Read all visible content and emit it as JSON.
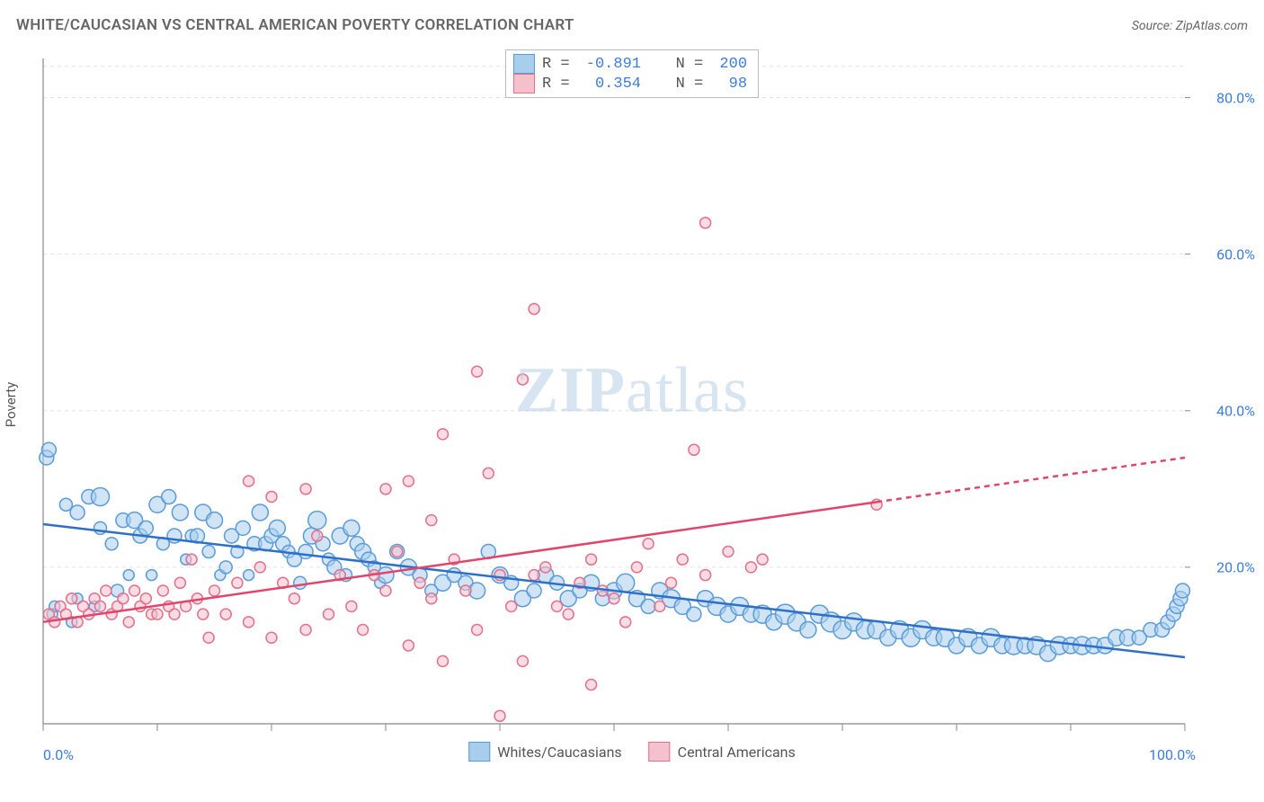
{
  "title": "WHITE/CAUCASIAN VS CENTRAL AMERICAN POVERTY CORRELATION CHART",
  "source": "Source: ZipAtlas.com",
  "watermark_prefix": "ZIP",
  "watermark_suffix": "atlas",
  "chart": {
    "type": "scatter",
    "ylabel": "Poverty",
    "xlim": [
      0,
      100
    ],
    "ylim": [
      0,
      85
    ],
    "xtick_major": [
      0,
      100
    ],
    "xtick_labels": [
      "0.0%",
      "100.0%"
    ],
    "xtick_minor_step": 10,
    "ytick_major": [
      20,
      40,
      60,
      80
    ],
    "ytick_labels": [
      "20.0%",
      "40.0%",
      "60.0%",
      "80.0%"
    ],
    "background_color": "#ffffff",
    "grid_color": "#e3e3e3",
    "grid_dash": "4,4",
    "axis_color": "#888888",
    "tick_color": "#888888",
    "marker_radius_min": 5,
    "marker_radius_max": 11,
    "marker_stroke_width": 1.5,
    "trend_line_width": 2.5,
    "series": [
      {
        "name": "Whites/Caucasians",
        "fill": "#a9cdec",
        "stroke": "#5a9bd8",
        "fill_opacity": 0.55,
        "R": "-0.891",
        "N": "200",
        "trend": {
          "x1": 0,
          "y1": 25.5,
          "x2": 100,
          "y2": 8.5,
          "color": "#2d6fc9",
          "dash_from_x": null
        },
        "points": [
          [
            0.3,
            34,
            8
          ],
          [
            0.5,
            35,
            8
          ],
          [
            0.8,
            14,
            6
          ],
          [
            1,
            15,
            6
          ],
          [
            2,
            28,
            7
          ],
          [
            2.5,
            13,
            6
          ],
          [
            3,
            16,
            6
          ],
          [
            3,
            27,
            8
          ],
          [
            4,
            29,
            8
          ],
          [
            4.5,
            15,
            6
          ],
          [
            5,
            25,
            7
          ],
          [
            5,
            29,
            10
          ],
          [
            6,
            23,
            7
          ],
          [
            6.5,
            17,
            7
          ],
          [
            7,
            26,
            8
          ],
          [
            7.5,
            19,
            6
          ],
          [
            8,
            26,
            9
          ],
          [
            8.5,
            24,
            8
          ],
          [
            9,
            25,
            8
          ],
          [
            9.5,
            19,
            6
          ],
          [
            10,
            28,
            9
          ],
          [
            10.5,
            23,
            7
          ],
          [
            11,
            29,
            8
          ],
          [
            11.5,
            24,
            8
          ],
          [
            12,
            27,
            9
          ],
          [
            12.5,
            21,
            6
          ],
          [
            13,
            24,
            7
          ],
          [
            13.5,
            24,
            8
          ],
          [
            14,
            27,
            9
          ],
          [
            14.5,
            22,
            7
          ],
          [
            15,
            26,
            9
          ],
          [
            15.5,
            19,
            6
          ],
          [
            16,
            20,
            7
          ],
          [
            16.5,
            24,
            8
          ],
          [
            17,
            22,
            7
          ],
          [
            17.5,
            25,
            8
          ],
          [
            18,
            19,
            6
          ],
          [
            18.5,
            23,
            8
          ],
          [
            19,
            27,
            9
          ],
          [
            19.5,
            23,
            8
          ],
          [
            20,
            24,
            8
          ],
          [
            20.5,
            25,
            9
          ],
          [
            21,
            23,
            8
          ],
          [
            21.5,
            22,
            7
          ],
          [
            22,
            21,
            8
          ],
          [
            22.5,
            18,
            7
          ],
          [
            23,
            22,
            8
          ],
          [
            23.5,
            24,
            9
          ],
          [
            24,
            26,
            10
          ],
          [
            24.5,
            23,
            8
          ],
          [
            25,
            21,
            7
          ],
          [
            25.5,
            20,
            8
          ],
          [
            26,
            24,
            9
          ],
          [
            26.5,
            19,
            7
          ],
          [
            27,
            25,
            9
          ],
          [
            27.5,
            23,
            8
          ],
          [
            28,
            22,
            9
          ],
          [
            28.5,
            21,
            8
          ],
          [
            29,
            20,
            7
          ],
          [
            29.5,
            18,
            6
          ],
          [
            30,
            19,
            9
          ],
          [
            31,
            22,
            8
          ],
          [
            32,
            20,
            9
          ],
          [
            33,
            19,
            8
          ],
          [
            34,
            17,
            7
          ],
          [
            35,
            18,
            9
          ],
          [
            36,
            19,
            8
          ],
          [
            37,
            18,
            8
          ],
          [
            38,
            17,
            9
          ],
          [
            39,
            22,
            8
          ],
          [
            40,
            19,
            9
          ],
          [
            41,
            18,
            8
          ],
          [
            42,
            16,
            9
          ],
          [
            43,
            17,
            8
          ],
          [
            44,
            19,
            9
          ],
          [
            45,
            18,
            8
          ],
          [
            46,
            16,
            9
          ],
          [
            47,
            17,
            8
          ],
          [
            48,
            18,
            9
          ],
          [
            49,
            16,
            8
          ],
          [
            50,
            17,
            9
          ],
          [
            51,
            18,
            10
          ],
          [
            52,
            16,
            9
          ],
          [
            53,
            15,
            8
          ],
          [
            54,
            17,
            9
          ],
          [
            55,
            16,
            10
          ],
          [
            56,
            15,
            9
          ],
          [
            57,
            14,
            8
          ],
          [
            58,
            16,
            9
          ],
          [
            59,
            15,
            10
          ],
          [
            60,
            14,
            9
          ],
          [
            61,
            15,
            10
          ],
          [
            62,
            14,
            9
          ],
          [
            63,
            14,
            10
          ],
          [
            64,
            13,
            9
          ],
          [
            65,
            14,
            11
          ],
          [
            66,
            13,
            10
          ],
          [
            67,
            12,
            9
          ],
          [
            68,
            14,
            10
          ],
          [
            69,
            13,
            11
          ],
          [
            70,
            12,
            10
          ],
          [
            71,
            13,
            10
          ],
          [
            72,
            12,
            10
          ],
          [
            73,
            12,
            10
          ],
          [
            74,
            11,
            9
          ],
          [
            75,
            12,
            10
          ],
          [
            76,
            11,
            10
          ],
          [
            77,
            12,
            10
          ],
          [
            78,
            11,
            9
          ],
          [
            79,
            11,
            10
          ],
          [
            80,
            10,
            9
          ],
          [
            81,
            11,
            10
          ],
          [
            82,
            10,
            9
          ],
          [
            83,
            11,
            10
          ],
          [
            84,
            10,
            9
          ],
          [
            85,
            10,
            10
          ],
          [
            86,
            10,
            9
          ],
          [
            87,
            10,
            10
          ],
          [
            88,
            9,
            9
          ],
          [
            89,
            10,
            10
          ],
          [
            90,
            10,
            9
          ],
          [
            91,
            10,
            10
          ],
          [
            92,
            10,
            9
          ],
          [
            93,
            10,
            9
          ],
          [
            94,
            11,
            9
          ],
          [
            95,
            11,
            9
          ],
          [
            96,
            11,
            8
          ],
          [
            97,
            12,
            8
          ],
          [
            98,
            12,
            8
          ],
          [
            98.5,
            13,
            8
          ],
          [
            99,
            14,
            8
          ],
          [
            99.3,
            15,
            8
          ],
          [
            99.6,
            16,
            8
          ],
          [
            99.8,
            17,
            8
          ]
        ]
      },
      {
        "name": "Central Americans",
        "fill": "#f5c1cd",
        "stroke": "#e3708c",
        "fill_opacity": 0.55,
        "R": "0.354",
        "N": "98",
        "trend": {
          "x1": 0,
          "y1": 13,
          "x2": 100,
          "y2": 34,
          "color": "#e1456b",
          "dash_from_x": 73
        },
        "points": [
          [
            0.5,
            14,
            6
          ],
          [
            1,
            13,
            6
          ],
          [
            1.5,
            15,
            6
          ],
          [
            2,
            14,
            6
          ],
          [
            2.5,
            16,
            6
          ],
          [
            3,
            13,
            6
          ],
          [
            3.5,
            15,
            6
          ],
          [
            4,
            14,
            6
          ],
          [
            4.5,
            16,
            6
          ],
          [
            5,
            15,
            6
          ],
          [
            5.5,
            17,
            6
          ],
          [
            6,
            14,
            6
          ],
          [
            6.5,
            15,
            6
          ],
          [
            7,
            16,
            6
          ],
          [
            7.5,
            13,
            6
          ],
          [
            8,
            17,
            6
          ],
          [
            8.5,
            15,
            6
          ],
          [
            9,
            16,
            6
          ],
          [
            9.5,
            14,
            6
          ],
          [
            10,
            14,
            6
          ],
          [
            10.5,
            17,
            6
          ],
          [
            11,
            15,
            6
          ],
          [
            11.5,
            14,
            6
          ],
          [
            12,
            18,
            6
          ],
          [
            12.5,
            15,
            6
          ],
          [
            13,
            21,
            6
          ],
          [
            13.5,
            16,
            6
          ],
          [
            14,
            14,
            6
          ],
          [
            14.5,
            11,
            6
          ],
          [
            15,
            17,
            6
          ],
          [
            16,
            14,
            6
          ],
          [
            17,
            18,
            6
          ],
          [
            18,
            13,
            6
          ],
          [
            18,
            31,
            6
          ],
          [
            19,
            20,
            6
          ],
          [
            20,
            11,
            6
          ],
          [
            20,
            29,
            6
          ],
          [
            21,
            18,
            6
          ],
          [
            22,
            16,
            6
          ],
          [
            23,
            12,
            6
          ],
          [
            23,
            30,
            6
          ],
          [
            24,
            24,
            6
          ],
          [
            25,
            14,
            6
          ],
          [
            26,
            19,
            6
          ],
          [
            27,
            15,
            6
          ],
          [
            28,
            12,
            6
          ],
          [
            29,
            19,
            6
          ],
          [
            30,
            17,
            6
          ],
          [
            30,
            30,
            6
          ],
          [
            31,
            22,
            6
          ],
          [
            32,
            10,
            6
          ],
          [
            32,
            31,
            6
          ],
          [
            33,
            18,
            6
          ],
          [
            34,
            16,
            6
          ],
          [
            34,
            26,
            6
          ],
          [
            35,
            8,
            6
          ],
          [
            35,
            37,
            6
          ],
          [
            36,
            21,
            6
          ],
          [
            37,
            17,
            6
          ],
          [
            38,
            12,
            6
          ],
          [
            38,
            45,
            6
          ],
          [
            39,
            32,
            6
          ],
          [
            40,
            19,
            6
          ],
          [
            40,
            1,
            6
          ],
          [
            41,
            15,
            6
          ],
          [
            42,
            8,
            6
          ],
          [
            42,
            44,
            6
          ],
          [
            43,
            53,
            6
          ],
          [
            43,
            19,
            6
          ],
          [
            44,
            20,
            6
          ],
          [
            45,
            15,
            6
          ],
          [
            46,
            14,
            6
          ],
          [
            47,
            18,
            6
          ],
          [
            48,
            21,
            6
          ],
          [
            48,
            5,
            6
          ],
          [
            49,
            17,
            6
          ],
          [
            50,
            16,
            6
          ],
          [
            51,
            13,
            6
          ],
          [
            52,
            20,
            6
          ],
          [
            53,
            23,
            6
          ],
          [
            54,
            15,
            6
          ],
          [
            55,
            18,
            6
          ],
          [
            56,
            21,
            6
          ],
          [
            57,
            35,
            6
          ],
          [
            58,
            19,
            6
          ],
          [
            58,
            64,
            6
          ],
          [
            60,
            22,
            6
          ],
          [
            62,
            20,
            6
          ],
          [
            63,
            21,
            6
          ],
          [
            73,
            28,
            6
          ]
        ]
      }
    ]
  },
  "stats_box": {
    "rows": [
      {
        "swatch_fill": "#a9cdec",
        "swatch_stroke": "#5a9bd8",
        "r_label": "R =",
        "r_val": "-0.891",
        "n_label": "N =",
        "n_val": "200"
      },
      {
        "swatch_fill": "#f5c1cd",
        "swatch_stroke": "#e3708c",
        "r_label": "R =",
        "r_val": " 0.354",
        "n_label": "N =",
        "n_val": " 98"
      }
    ]
  },
  "legend": {
    "items": [
      {
        "label": "Whites/Caucasians",
        "fill": "#a9cdec",
        "stroke": "#5a9bd8"
      },
      {
        "label": "Central Americans",
        "fill": "#f5c1cd",
        "stroke": "#e3708c"
      }
    ]
  }
}
